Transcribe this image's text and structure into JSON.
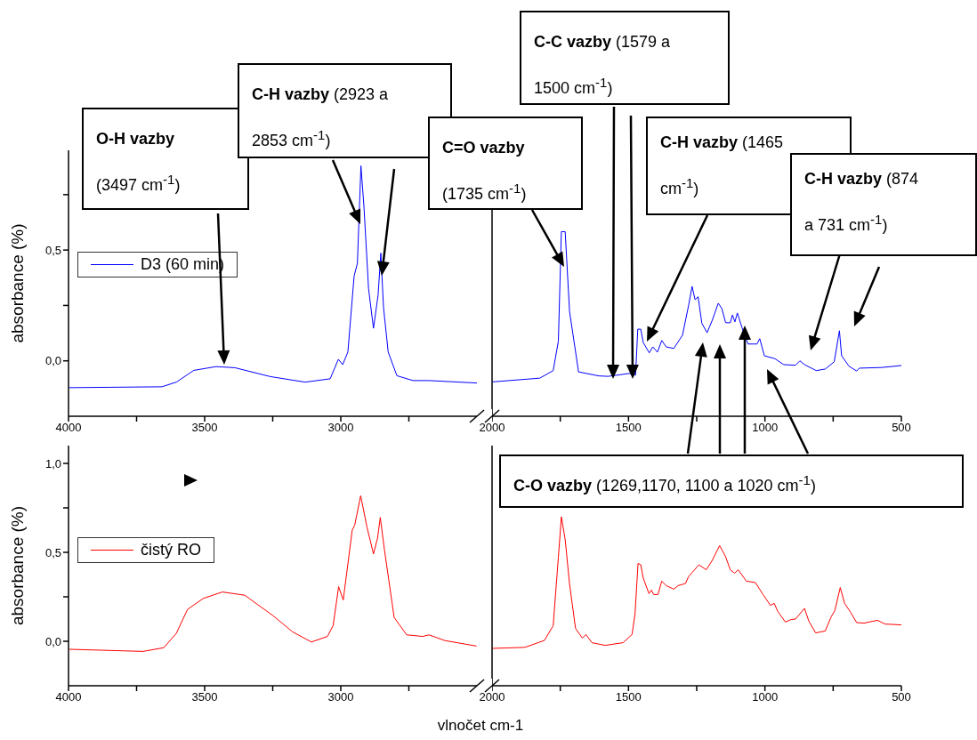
{
  "chart_data": [
    {
      "type": "line",
      "ylabel": "absorbance (%)",
      "legend": "left",
      "xlim": [
        4000,
        2500
      ],
      "xticks": [
        4000,
        {
          "value": 3750,
          "label": null
        },
        3500,
        {
          "value": 3250,
          "label": null
        },
        3000,
        {
          "value": 2750,
          "label": null
        }
      ],
      "ylim": [
        -0.25,
        0.95
      ],
      "yticks": [
        {
          "value": 0,
          "label": "0,0"
        },
        {
          "value": 0.25,
          "label": null
        },
        {
          "value": 0.5,
          "label": "0,5"
        },
        {
          "value": 0.75,
          "label": null
        }
      ],
      "series": [
        {
          "name": "D3 (60 min)",
          "color": "#0000ff",
          "x": [
            3997,
            3657,
            3604,
            3540,
            3458,
            3389,
            3259,
            3131,
            3039,
            3009,
            2993,
            2974,
            2951,
            2939,
            2926,
            2915,
            2898,
            2880,
            2863,
            2853,
            2843,
            2826,
            2794,
            2735,
            2676,
            2500
          ],
          "values": [
            -0.121,
            -0.117,
            -0.096,
            -0.043,
            -0.026,
            -0.031,
            -0.071,
            -0.096,
            -0.081,
            0.007,
            -0.017,
            0.04,
            0.383,
            0.44,
            0.88,
            0.697,
            0.326,
            0.147,
            0.297,
            0.486,
            0.24,
            0.04,
            -0.067,
            -0.089,
            -0.089,
            -0.1
          ]
        }
      ],
      "annotations": [
        "O-H vazby (3497 cm$^{-1}$)",
        "C-H vazby (2923 a 2853 cm$^{-1}$)"
      ]
    },
    {
      "type": "line",
      "tick_labels": "x",
      "xlim": [
        2000,
        500
      ],
      "xticks": [
        2000,
        {
          "value": 1750,
          "label": null
        },
        1500,
        {
          "value": 1250,
          "label": null
        },
        1000,
        {
          "value": 750,
          "label": null
        },
        500
      ],
      "ylim": [
        -0.25,
        0.95
      ],
      "series": [
        {
          "color": "#0000ff",
          "x": [
            1999,
            1825,
            1776,
            1757,
            1746,
            1732,
            1716,
            1683,
            1608,
            1575,
            1498,
            1474,
            1466,
            1455,
            1446,
            1424,
            1411,
            1394,
            1378,
            1362,
            1334,
            1302,
            1280,
            1267,
            1256,
            1245,
            1231,
            1212,
            1193,
            1171,
            1158,
            1144,
            1127,
            1119,
            1110,
            1101,
            1084,
            1062,
            1029,
            1019,
            1002,
            964,
            931,
            888,
            872,
            855,
            812,
            779,
            746,
            727,
            719,
            692,
            664,
            654,
            572,
            500
          ],
          "values": [
            -0.095,
            -0.078,
            -0.044,
            0.089,
            0.583,
            0.583,
            0.223,
            -0.05,
            -0.068,
            -0.07,
            -0.057,
            -0.064,
            0.143,
            0.143,
            0.083,
            0.036,
            0.063,
            0.039,
            0.092,
            0.063,
            0.056,
            0.116,
            0.249,
            0.336,
            0.276,
            0.289,
            0.169,
            0.127,
            0.183,
            0.26,
            0.236,
            0.172,
            0.172,
            0.207,
            0.176,
            0.216,
            0.15,
            0.076,
            0.076,
            0.1,
            0.023,
            0.01,
            -0.017,
            -0.02,
            0,
            -0.017,
            -0.044,
            -0.037,
            -0.004,
            0.136,
            0.023,
            -0.024,
            -0.046,
            -0.033,
            -0.03,
            -0.021
          ]
        }
      ],
      "annotations": [
        "C=O vazby (1735 cm$^{-1}$)",
        "C-C vazby (1579 a 1500 cm$^{-1}$)",
        "C-H vazby (1465 cm$^{-1}$)",
        "C-H vazby (874 a 731 cm$^{-1}$)",
        "C-O vazby (1269,1170, 1100 a 1020 cm$^{-1}$)"
      ]
    },
    {
      "type": "line",
      "ylabel": "absorbance (%)",
      "xlabel": "vlnočet cm-1",
      "legend": "left",
      "xlim": [
        4000,
        2500
      ],
      "xticks": [
        4000,
        {
          "value": 3750,
          "label": null
        },
        3500,
        {
          "value": 3250,
          "label": null
        },
        3000,
        {
          "value": 2750,
          "label": null
        }
      ],
      "ylim": [
        -0.25,
        1.1
      ],
      "yticks": [
        {
          "value": 0,
          "label": "0,0"
        },
        {
          "value": 0.25,
          "label": null
        },
        {
          "value": 0.5,
          "label": "0,5"
        },
        {
          "value": 0.75,
          "label": null
        },
        {
          "value": 1,
          "label": "1,0"
        }
      ],
      "series": [
        {
          "name": "čistý RO",
          "color": "#ff0000",
          "x": [
            3997,
            3726,
            3650,
            3604,
            3563,
            3505,
            3435,
            3353,
            3248,
            3178,
            3108,
            3049,
            3028,
            3008,
            2991,
            2958,
            2949,
            2927,
            2904,
            2880,
            2865,
            2855,
            2840,
            2804,
            2758,
            2729,
            2699,
            2676,
            2618,
            2501
          ],
          "values": [
            -0.045,
            -0.057,
            -0.036,
            0.045,
            0.179,
            0.241,
            0.277,
            0.259,
            0.143,
            0.054,
            -0.004,
            0.027,
            0.089,
            0.307,
            0.232,
            0.625,
            0.652,
            0.818,
            0.643,
            0.491,
            0.58,
            0.696,
            0.518,
            0.134,
            0.036,
            0.032,
            0.027,
            0.036,
            0.004,
            -0.027
          ]
        }
      ]
    },
    {
      "type": "line",
      "tick_labels": "x",
      "xlim": [
        2000,
        500
      ],
      "xticks": [
        2000,
        {
          "value": 1750,
          "label": null
        },
        1500,
        {
          "value": 1250,
          "label": null
        },
        1000,
        {
          "value": 750,
          "label": null
        },
        500
      ],
      "ylim": [
        -0.25,
        1.1
      ],
      "series": [
        {
          "color": "#ff0000",
          "x": [
            1999,
            1879,
            1808,
            1776,
            1757,
            1746,
            1732,
            1716,
            1694,
            1669,
            1656,
            1634,
            1585,
            1520,
            1487,
            1476,
            1465,
            1455,
            1446,
            1425,
            1416,
            1408,
            1392,
            1378,
            1362,
            1334,
            1318,
            1291,
            1280,
            1242,
            1215,
            1193,
            1166,
            1144,
            1127,
            1111,
            1098,
            1068,
            1035,
            1007,
            980,
            966,
            953,
            925,
            904,
            888,
            855,
            839,
            814,
            779,
            757,
            744,
            724,
            708,
            686,
            664,
            637,
            588,
            560,
            500
          ],
          "values": [
            -0.04,
            -0.034,
            0.005,
            0.088,
            0.472,
            0.7,
            0.572,
            0.322,
            0.072,
            0.018,
            0.038,
            -0.008,
            -0.023,
            -0.008,
            0.038,
            0.155,
            0.438,
            0.43,
            0.355,
            0.268,
            0.288,
            0.263,
            0.263,
            0.338,
            0.313,
            0.293,
            0.313,
            0.325,
            0.363,
            0.43,
            0.402,
            0.455,
            0.538,
            0.475,
            0.402,
            0.383,
            0.402,
            0.338,
            0.33,
            0.263,
            0.202,
            0.213,
            0.168,
            0.108,
            0.122,
            0.125,
            0.185,
            0.113,
            0.047,
            0.058,
            0.138,
            0.172,
            0.302,
            0.213,
            0.163,
            0.105,
            0.102,
            0.118,
            0.097,
            0.092
          ]
        }
      ]
    }
  ]
}
